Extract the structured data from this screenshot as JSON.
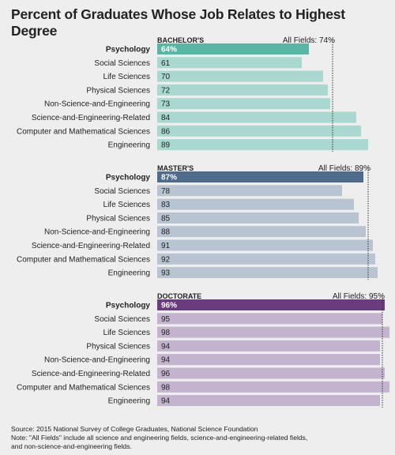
{
  "title": "Percent of Graduates Whose Job Relates to Highest Degree",
  "source_lines": [
    "Source: 2015 National Survey of College Graduates, National Science Foundation",
    "Note: \"All Fields\" include all science and engineering fields, science-and-engineering-related fields,",
    "and non-science-and-engineering fields."
  ],
  "chart_data": [
    {
      "type": "bar",
      "orientation": "horizontal",
      "panel_label": "BACHELOR'S",
      "reference_label": "All Fields: 74%",
      "reference_value": 74,
      "xlim": [
        0,
        100
      ],
      "categories": [
        "Psychology",
        "Social Sciences",
        "Life Sciences",
        "Physical Sciences",
        "Non-Science-and-Engineering",
        "Science-and-Engineering-Related",
        "Computer and Mathematical Sciences",
        "Engineering"
      ],
      "labels": [
        "64%",
        "61",
        "70",
        "72",
        "73",
        "84",
        "86",
        "89"
      ],
      "values": [
        64,
        61,
        70,
        72,
        73,
        84,
        86,
        89
      ],
      "highlight_color": "#5ab5a5",
      "bar_color": "#a9d8d0"
    },
    {
      "type": "bar",
      "orientation": "horizontal",
      "panel_label": "MASTER'S",
      "reference_label": "All Fields: 89%",
      "reference_value": 89,
      "xlim": [
        0,
        100
      ],
      "categories": [
        "Psychology",
        "Social Sciences",
        "Life Sciences",
        "Physical Sciences",
        "Non-Science-and-Engineering",
        "Science-and-Engineering-Related",
        "Computer and Mathematical Sciences",
        "Engineering"
      ],
      "labels": [
        "87%",
        "78",
        "83",
        "85",
        "88",
        "91",
        "92",
        "93"
      ],
      "values": [
        87,
        78,
        83,
        85,
        88,
        91,
        92,
        93
      ],
      "highlight_color": "#4f6b8c",
      "bar_color": "#b8c4d1"
    },
    {
      "type": "bar",
      "orientation": "horizontal",
      "panel_label": "DOCTORATE",
      "reference_label": "All Fields: 95%",
      "reference_value": 95,
      "xlim": [
        0,
        100
      ],
      "categories": [
        "Psychology",
        "Social Sciences",
        "Life Sciences",
        "Physical Sciences",
        "Non-Science-and-Engineering",
        "Science-and-Engineering-Related",
        "Computer and Mathematical Sciences",
        "Engineering"
      ],
      "labels": [
        "96%",
        "95",
        "98",
        "94",
        "94",
        "96",
        "98",
        "94"
      ],
      "values": [
        96,
        95,
        98,
        94,
        94,
        96,
        98,
        94
      ],
      "highlight_color": "#6a3b7e",
      "bar_color": "#c3b3ce"
    }
  ]
}
